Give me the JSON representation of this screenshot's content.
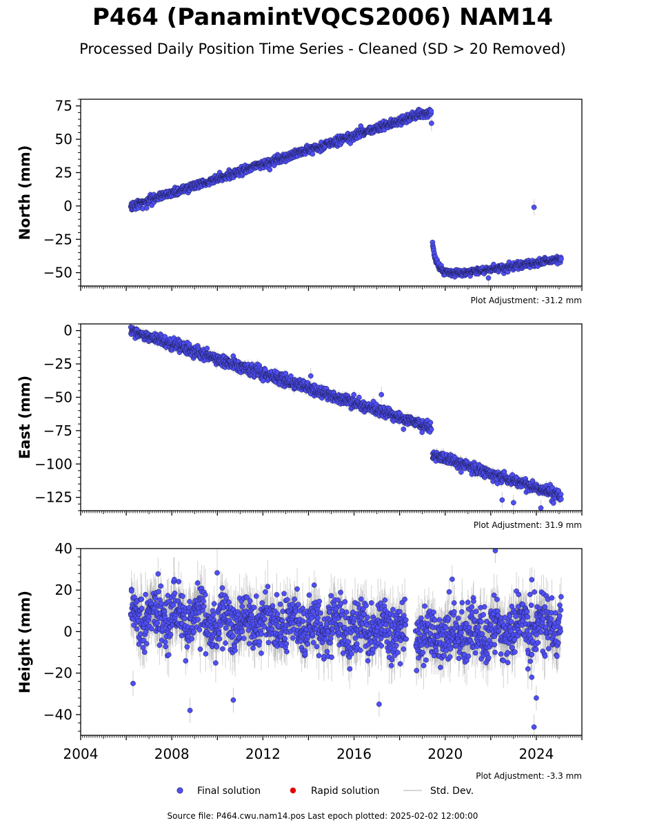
{
  "title": "P464 (PanamintVQCS2006) NAM14",
  "subtitle": "Processed Daily Position Time Series - Cleaned (SD > 20 Removed)",
  "legend": [
    {
      "label": "Final solution",
      "color": "#4f4ff5",
      "marker": "circle"
    },
    {
      "label": "Rapid solution",
      "color": "#e00000",
      "marker": "circle"
    },
    {
      "label": "Std. Dev.",
      "color": "#c8c8c8",
      "marker": "line"
    }
  ],
  "footer": "Source file: P464.cwu.nam14.pos  Last epoch plotted: 2025-02-02 12:00:00",
  "colors": {
    "final": "#4f4ff5",
    "rapid": "#e00000",
    "stddev": "#808080",
    "edge": "#1a1a4a"
  },
  "chart_data": [
    {
      "type": "scatter",
      "ylabel": "North (mm)",
      "xlim": [
        2004,
        2026
      ],
      "ylim": [
        -60,
        80
      ],
      "yticks": [
        -50,
        -25,
        0,
        25,
        50,
        75
      ],
      "ytick_labels": [
        "−50",
        "−25",
        "0",
        "25",
        "50",
        "75"
      ],
      "adjustment": "Plot Adjustment: -31.2 mm",
      "segments": [
        {
          "x0": 2006.2,
          "x1": 2019.4,
          "y0": 0,
          "y1": 71,
          "noise": 1.5,
          "kind": "linear"
        },
        {
          "x0": 2019.45,
          "x1": 2025.1,
          "y0": -30,
          "y1": -40,
          "noise": 1.3,
          "kind": "postseismic",
          "min": -50,
          "min_x": 2020.9
        }
      ],
      "outliers": [
        [
          2023.9,
          -1
        ],
        [
          2019.4,
          62
        ],
        [
          2021.9,
          -54
        ]
      ]
    },
    {
      "type": "scatter",
      "ylabel": "East (mm)",
      "xlim": [
        2004,
        2026
      ],
      "ylim": [
        -135,
        5
      ],
      "yticks": [
        -125,
        -100,
        -75,
        -50,
        -25,
        0
      ],
      "ytick_labels": [
        "−125",
        "−100",
        "−75",
        "−50",
        "−25",
        "0"
      ],
      "adjustment": "Plot Adjustment: 31.9 mm",
      "segments": [
        {
          "x0": 2006.2,
          "x1": 2019.4,
          "y0": 0,
          "y1": -73,
          "noise": 2.0,
          "kind": "linear"
        },
        {
          "x0": 2019.45,
          "x1": 2025.1,
          "y0": -93,
          "y1": -124,
          "noise": 2.0,
          "kind": "linear"
        }
      ],
      "outliers": [
        [
          2023.0,
          -129
        ],
        [
          2024.2,
          -133
        ],
        [
          2022.5,
          -127
        ],
        [
          2014.1,
          -34
        ],
        [
          2017.2,
          -48
        ]
      ]
    },
    {
      "type": "scatter",
      "ylabel": "Height (mm)",
      "xlim": [
        2004,
        2026
      ],
      "ylim": [
        -50,
        40
      ],
      "yticks": [
        -40,
        -20,
        0,
        20,
        40
      ],
      "ytick_labels": [
        "−40",
        "−20",
        "0",
        "20",
        "40"
      ],
      "xticks": [
        2004,
        2008,
        2012,
        2016,
        2020,
        2024
      ],
      "xtick_labels": [
        "2004",
        "2008",
        "2012",
        "2016",
        "2020",
        "2024"
      ],
      "adjustment": "Plot Adjustment: -3.3 mm",
      "segments": [
        {
          "x0": 2006.2,
          "x1": 2018.3,
          "y0": 8,
          "y1": 0,
          "noise": 6.5,
          "kind": "seasonal"
        },
        {
          "x0": 2018.7,
          "x1": 2025.1,
          "y0": -4,
          "y1": 4,
          "noise": 6.5,
          "kind": "seasonal"
        }
      ],
      "outliers": [
        [
          2008.8,
          -38
        ],
        [
          2010.7,
          -33
        ],
        [
          2023.9,
          -46
        ],
        [
          2023.8,
          -22
        ],
        [
          2024.0,
          -32
        ],
        [
          2006.3,
          -25
        ],
        [
          2022.2,
          39
        ],
        [
          2017.1,
          -35
        ],
        [
          2023.8,
          25
        ]
      ]
    }
  ]
}
